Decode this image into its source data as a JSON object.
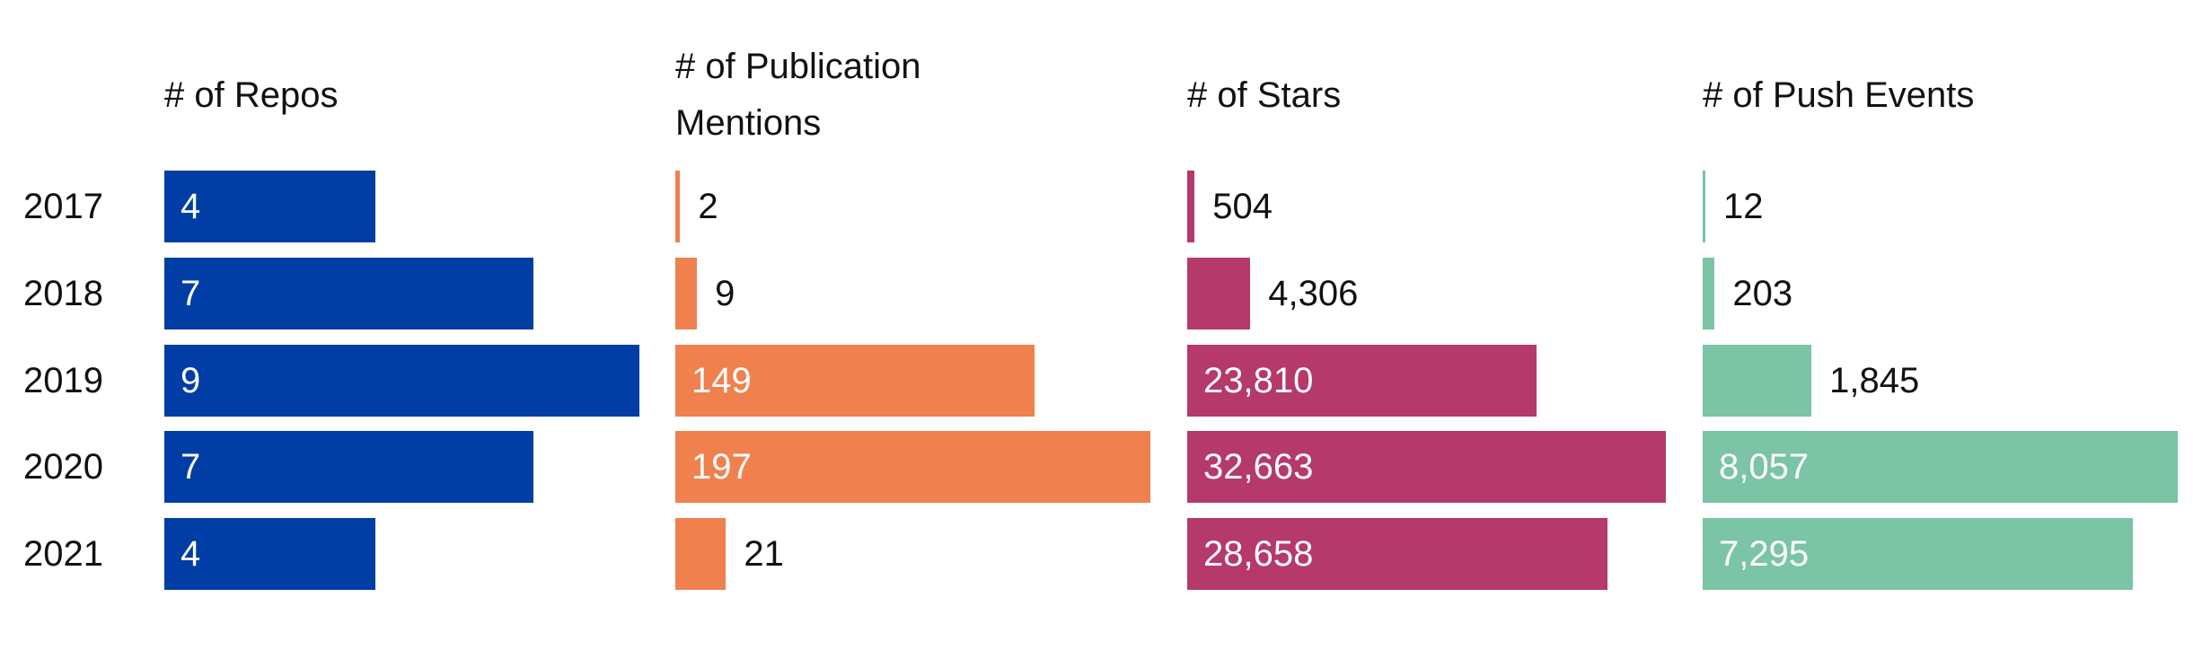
{
  "chart_data": {
    "type": "bar",
    "orientation": "horizontal",
    "categories": [
      "2017",
      "2018",
      "2019",
      "2020",
      "2021"
    ],
    "series": [
      {
        "name": "# of Repos",
        "values": [
          4,
          7,
          9,
          7,
          4
        ],
        "labels": [
          "4",
          "7",
          "9",
          "7",
          "4"
        ],
        "color": "#003DA5"
      },
      {
        "name": "# of Publication Mentions",
        "name_lines": [
          "# of Publication",
          "Mentions"
        ],
        "values": [
          2,
          9,
          149,
          197,
          21
        ],
        "labels": [
          "2",
          "9",
          "149",
          "197",
          "21"
        ],
        "color": "#F0804E"
      },
      {
        "name": "# of Stars",
        "values": [
          504,
          4306,
          23810,
          32663,
          28658
        ],
        "labels": [
          "504",
          "4,306",
          "23,810",
          "32,663",
          "28,658"
        ],
        "color": "#B5396B"
      },
      {
        "name": "# of Push Events",
        "values": [
          12,
          203,
          1845,
          8057,
          7295
        ],
        "labels": [
          "12",
          "203",
          "1,845",
          "8,057",
          "7,295"
        ],
        "color": "#7BC4A6"
      }
    ],
    "grid": false,
    "legend": "none"
  }
}
